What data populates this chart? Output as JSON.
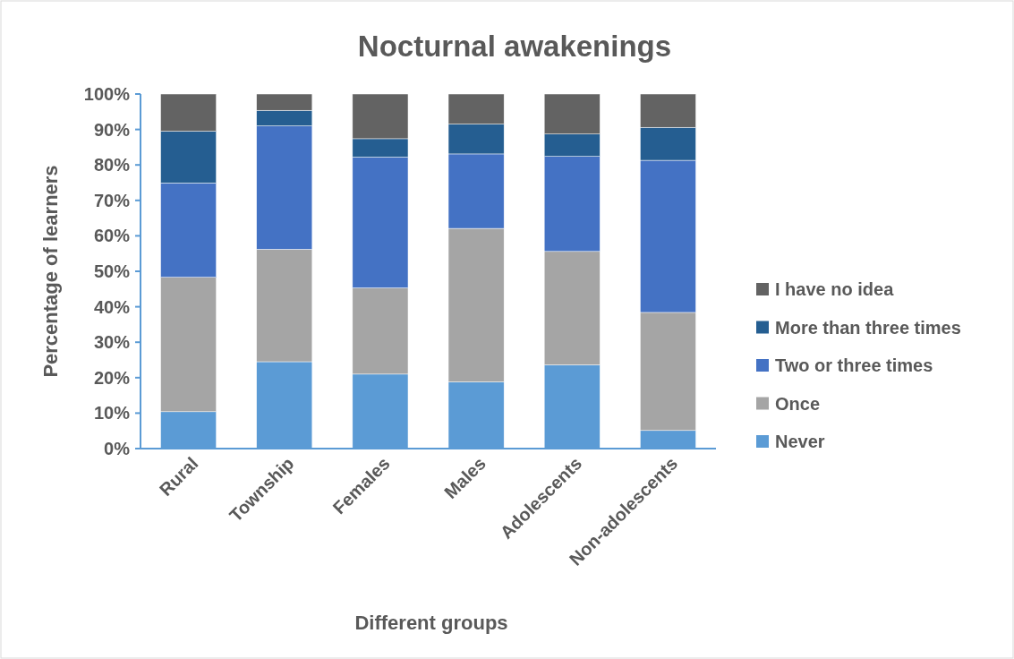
{
  "chart_data": {
    "type": "bar",
    "title": "Nocturnal awakenings",
    "xlabel": "Different groups",
    "ylabel": "Percentage of learners",
    "categories": [
      "Rural",
      "Township",
      "Females",
      "Males",
      "Adolescents",
      "Non-adolescents"
    ],
    "stacked": true,
    "series": [
      {
        "name": "Never",
        "color": "#5b9bd5",
        "values": [
          10.4,
          24.5,
          21.0,
          18.8,
          23.6,
          5.1
        ]
      },
      {
        "name": "Once",
        "color": "#a5a5a5",
        "values": [
          37.9,
          31.7,
          24.3,
          43.3,
          32.0,
          33.3
        ]
      },
      {
        "name": "Two or three times",
        "color": "#4472c4",
        "values": [
          26.6,
          34.8,
          36.9,
          21.0,
          26.8,
          42.9
        ]
      },
      {
        "name": "More than three times",
        "color": "#255e91",
        "values": [
          14.6,
          4.4,
          5.2,
          8.4,
          6.3,
          9.3
        ]
      },
      {
        "name": "I have no idea",
        "color": "#636363",
        "values": [
          10.5,
          4.6,
          12.6,
          8.5,
          11.3,
          9.4
        ]
      }
    ],
    "ylim": [
      0,
      100
    ],
    "yticks": [
      {
        "value": 0,
        "label": "0%"
      },
      {
        "value": 10,
        "label": "10%"
      },
      {
        "value": 20,
        "label": "20%"
      },
      {
        "value": 30,
        "label": "30%"
      },
      {
        "value": 40,
        "label": "40%"
      },
      {
        "value": 50,
        "label": "50%"
      },
      {
        "value": 60,
        "label": "60%"
      },
      {
        "value": 70,
        "label": "70%"
      },
      {
        "value": 80,
        "label": "80%"
      },
      {
        "value": 90,
        "label": "90%"
      },
      {
        "value": 100,
        "label": "100%"
      }
    ],
    "legend": "right"
  }
}
